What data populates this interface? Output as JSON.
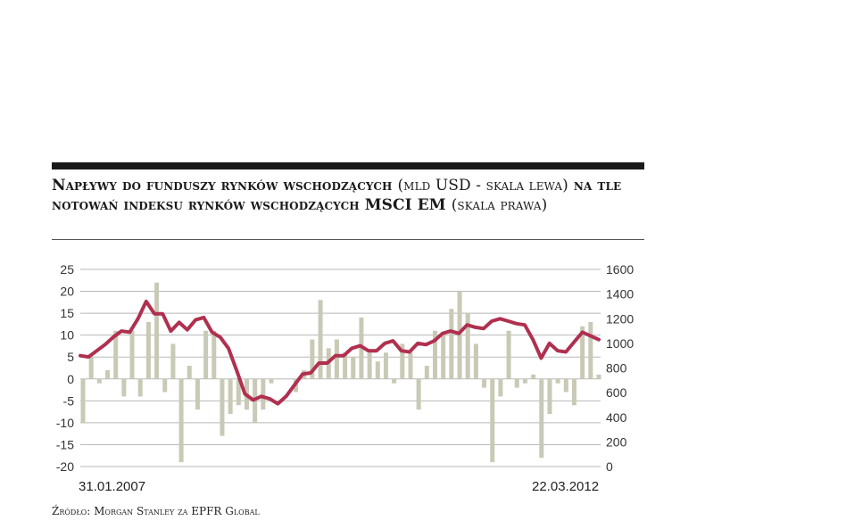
{
  "title": {
    "part1": "Napływy do funduszy rynków wschodzących",
    "part2_light": "(mld USD - skala lewa)",
    "part3": "na tle notowań indeksu rynków wschodzących MSCI EM",
    "part4_light": "(skala prawa)"
  },
  "source": "Źródło: Morgan Stanley za EPFR Global",
  "date_start": "31.01.2007",
  "date_end": "22.03.2012",
  "colors": {
    "bars": "#c9c9b6",
    "line": "#b0304f",
    "grid": "#b9b9b9",
    "rule": "#1a1a1a"
  },
  "chart_data": {
    "type": "bar+line",
    "x_range": [
      "31.01.2007",
      "22.03.2012"
    ],
    "y_left": {
      "label": "mld USD - skala lewa",
      "range": [
        -20,
        25
      ],
      "ticks": [
        25,
        20,
        15,
        10,
        5,
        0,
        -5,
        -10,
        -15,
        -20
      ]
    },
    "y_right": {
      "label": "skala prawa",
      "range": [
        0,
        1600
      ],
      "ticks": [
        1600,
        1400,
        1200,
        1000,
        800,
        600,
        400,
        200,
        0
      ]
    },
    "grid": true,
    "series": [
      {
        "kind": "bar",
        "axis": "left",
        "values": [
          -10,
          5,
          -1,
          2,
          11,
          -4,
          11,
          -4,
          13,
          22,
          -3,
          8,
          -19,
          3,
          -7,
          11,
          11,
          -13,
          -8,
          -6,
          -7,
          -10,
          -7,
          -1,
          0,
          0,
          -3,
          2,
          9,
          18,
          7,
          9,
          6,
          5,
          14,
          6,
          4,
          6,
          -1,
          8,
          6,
          -7,
          3,
          11,
          10,
          16,
          20,
          15,
          8,
          -2,
          -19,
          -4,
          11,
          -2,
          -1,
          1,
          -18,
          -8,
          -1,
          -3,
          -6,
          12,
          13,
          1
        ]
      },
      {
        "kind": "line",
        "axis": "right",
        "values": [
          900,
          890,
          940,
          990,
          1050,
          1100,
          1090,
          1200,
          1340,
          1240,
          1240,
          1100,
          1170,
          1110,
          1190,
          1210,
          1090,
          1050,
          960,
          780,
          590,
          540,
          570,
          550,
          510,
          570,
          660,
          750,
          760,
          840,
          840,
          900,
          900,
          960,
          980,
          940,
          940,
          1000,
          1020,
          940,
          930,
          1000,
          990,
          1020,
          1080,
          1100,
          1080,
          1150,
          1130,
          1120,
          1180,
          1200,
          1180,
          1160,
          1150,
          1030,
          880,
          1000,
          940,
          930,
          1010,
          1090,
          1060,
          1030
        ]
      }
    ]
  }
}
